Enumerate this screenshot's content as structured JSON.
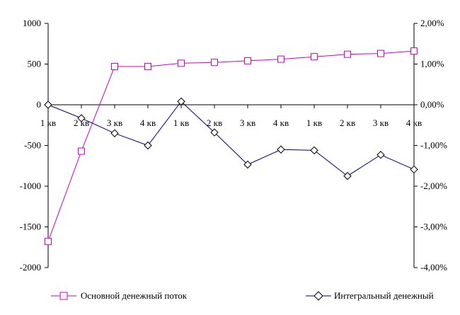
{
  "chart_data": {
    "type": "line",
    "categories": [
      "1 кв",
      "2 кв",
      "3 кв",
      "4 кв",
      "1 кв",
      "2 кв",
      "3 кв",
      "4 кв",
      "1 кв",
      "2 кв",
      "3 кв",
      "4 кв"
    ],
    "series": [
      {
        "name": "Основной денежный поток",
        "axis": "left",
        "color": "#cc00cc",
        "marker": "square",
        "values": [
          -1680,
          -570,
          470,
          470,
          510,
          520,
          540,
          560,
          590,
          620,
          630,
          660
        ]
      },
      {
        "name": "Интегральный денежный",
        "axis": "right",
        "color": "#000080",
        "marker": "diamond",
        "values": [
          0.0,
          -0.33,
          -0.7,
          -1.0,
          0.08,
          -0.68,
          -1.47,
          -1.1,
          -1.12,
          -1.75,
          -1.23,
          -1.59
        ]
      }
    ],
    "left_axis": {
      "ylim": [
        -2000,
        1000
      ],
      "ticks": [
        1000,
        500,
        0,
        -500,
        -1000,
        -1500,
        -2000
      ],
      "tick_labels": [
        "1000",
        "500",
        "0",
        "-500",
        "-1000",
        "-1500",
        "-2000"
      ]
    },
    "right_axis": {
      "ylim": [
        -4.0,
        2.0
      ],
      "ticks": [
        2.0,
        1.0,
        0.0,
        -1.0,
        -2.0,
        -3.0,
        -4.0
      ],
      "tick_labels": [
        "2,00%",
        "1,00%",
        "0,00%",
        "-1,00%",
        "-2,00%",
        "-3,00%",
        "-4,00%"
      ]
    },
    "title": "",
    "xlabel": "",
    "ylabel": "",
    "grid": false,
    "legend_position": "bottom"
  }
}
